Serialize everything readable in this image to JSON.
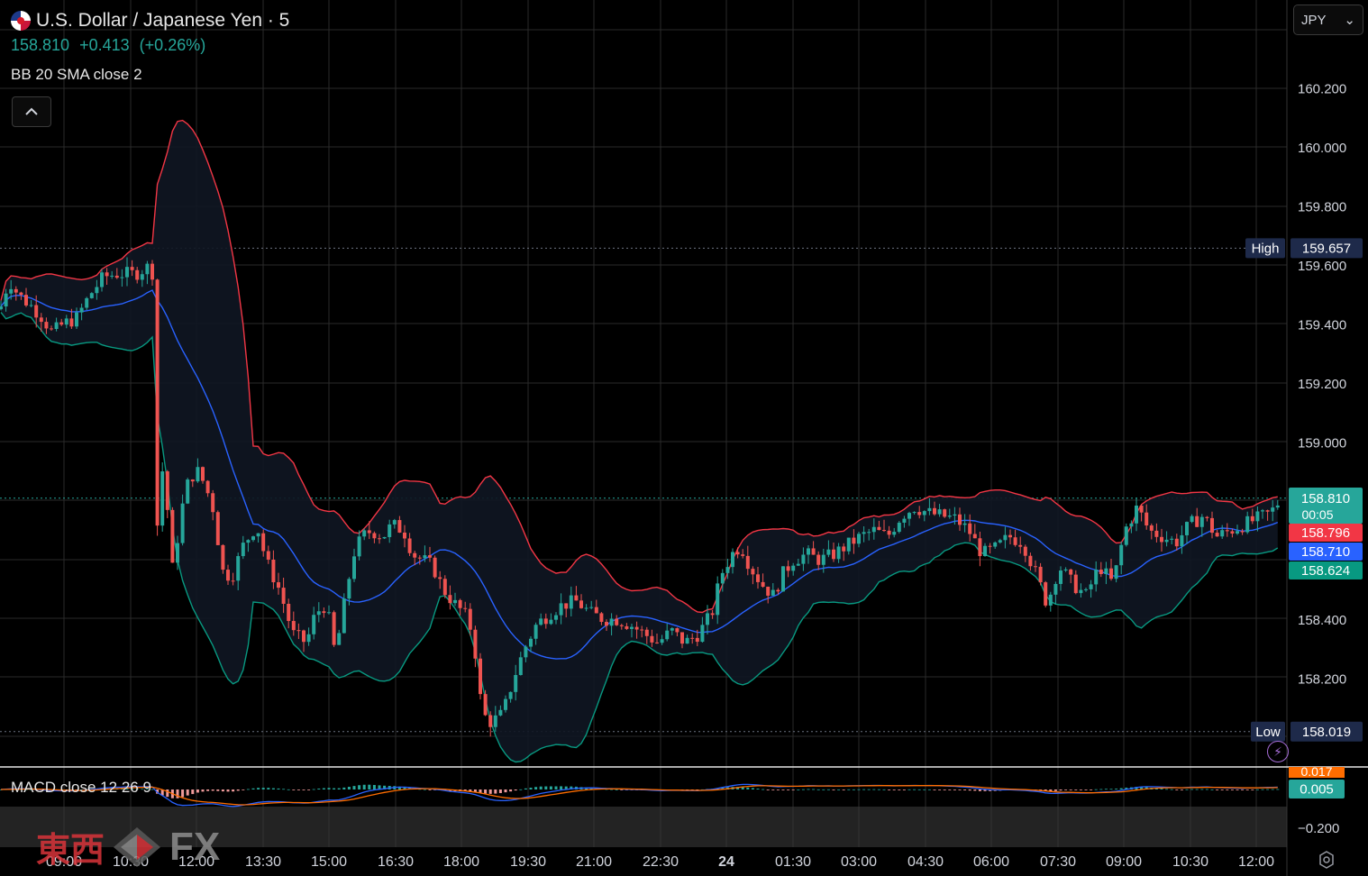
{
  "header": {
    "title": "U.S. Dollar / Japanese Yen · 5",
    "last_price": "158.810",
    "change": "+0.413",
    "change_pct": "(+0.26%)",
    "bb_label": "BB 20 SMA close 2"
  },
  "currency_selector": {
    "value": "JPY"
  },
  "macd": {
    "label": "MACD close 12 26 9"
  },
  "watermark": {
    "cn": "東西",
    "fx": "FX"
  },
  "colors": {
    "up": "#26a69a",
    "down": "#ef5350",
    "bb_upper": "#f23645",
    "bb_basis": "#2962ff",
    "bb_lower": "#089981",
    "macd": "#2962ff",
    "signal": "#ff6d00",
    "grid": "#2a2a2a"
  },
  "chart_data": [
    {
      "type": "candlestick",
      "symbol": "USDJPY",
      "interval": "5",
      "ylim": [
        157.9,
        160.3
      ],
      "y_ticks": [
        158.2,
        158.4,
        159.0,
        159.2,
        159.4,
        159.6,
        159.8,
        160.0,
        160.2
      ],
      "x_labels": [
        "09:00",
        "10:30",
        "12:00",
        "13:30",
        "15:00",
        "16:30",
        "18:00",
        "19:30",
        "21:00",
        "22:30",
        "24",
        "01:30",
        "03:00",
        "04:30",
        "06:00",
        "07:30",
        "09:00",
        "10:30",
        "12:00"
      ],
      "high": {
        "label": "High",
        "value": 159.657
      },
      "low": {
        "label": "Low",
        "value": 158.019
      },
      "last": {
        "value": "158.810",
        "countdown": "00:05"
      },
      "bb_upper": "158.796",
      "bb_basis": "158.710",
      "bb_lower": "158.624",
      "close_path": [
        [
          0,
          159.45
        ],
        [
          10,
          159.55
        ],
        [
          20,
          159.5
        ],
        [
          35,
          159.46
        ],
        [
          45,
          159.43
        ],
        [
          58,
          159.37
        ],
        [
          70,
          159.4
        ],
        [
          85,
          159.42
        ],
        [
          100,
          159.5
        ],
        [
          115,
          159.56
        ],
        [
          130,
          159.57
        ],
        [
          150,
          159.57
        ],
        [
          168,
          159.6
        ],
        [
          172,
          159.5
        ],
        [
          175,
          158.6
        ],
        [
          178,
          158.95
        ],
        [
          185,
          158.8
        ],
        [
          192,
          158.55
        ],
        [
          200,
          158.75
        ],
        [
          210,
          158.88
        ],
        [
          220,
          158.9
        ],
        [
          228,
          158.85
        ],
        [
          236,
          158.78
        ],
        [
          248,
          158.55
        ],
        [
          258,
          158.55
        ],
        [
          270,
          158.65
        ],
        [
          285,
          158.72
        ],
        [
          295,
          158.6
        ],
        [
          310,
          158.5
        ],
        [
          325,
          158.35
        ],
        [
          340,
          158.32
        ],
        [
          350,
          158.42
        ],
        [
          362,
          158.45
        ],
        [
          372,
          158.28
        ],
        [
          382,
          158.45
        ],
        [
          392,
          158.62
        ],
        [
          402,
          158.68
        ],
        [
          412,
          158.7
        ],
        [
          425,
          158.68
        ],
        [
          435,
          158.72
        ],
        [
          448,
          158.7
        ],
        [
          458,
          158.62
        ],
        [
          470,
          158.6
        ],
        [
          480,
          158.58
        ],
        [
          492,
          158.5
        ],
        [
          505,
          158.45
        ],
        [
          515,
          158.42
        ],
        [
          525,
          158.35
        ],
        [
          535,
          158.08
        ],
        [
          545,
          158.05
        ],
        [
          558,
          158.08
        ],
        [
          570,
          158.2
        ],
        [
          582,
          158.3
        ],
        [
          595,
          158.38
        ],
        [
          610,
          158.42
        ],
        [
          625,
          158.45
        ],
        [
          640,
          158.46
        ],
        [
          655,
          158.42
        ],
        [
          670,
          158.4
        ],
        [
          685,
          158.4
        ],
        [
          700,
          158.38
        ],
        [
          715,
          158.35
        ],
        [
          730,
          158.32
        ],
        [
          745,
          158.36
        ],
        [
          760,
          158.32
        ],
        [
          775,
          158.35
        ],
        [
          790,
          158.42
        ],
        [
          800,
          158.55
        ],
        [
          812,
          158.62
        ],
        [
          822,
          158.65
        ],
        [
          832,
          158.58
        ],
        [
          845,
          158.52
        ],
        [
          858,
          158.48
        ],
        [
          868,
          158.55
        ],
        [
          880,
          158.6
        ],
        [
          895,
          158.62
        ],
        [
          910,
          158.6
        ],
        [
          925,
          158.62
        ],
        [
          940,
          158.65
        ],
        [
          955,
          158.68
        ],
        [
          970,
          158.7
        ],
        [
          985,
          158.68
        ],
        [
          1000,
          158.75
        ],
        [
          1015,
          158.78
        ],
        [
          1030,
          158.76
        ],
        [
          1045,
          158.75
        ],
        [
          1060,
          158.74
        ],
        [
          1075,
          158.7
        ],
        [
          1090,
          158.62
        ],
        [
          1105,
          158.64
        ],
        [
          1120,
          158.68
        ],
        [
          1135,
          158.66
        ],
        [
          1150,
          158.55
        ],
        [
          1162,
          158.45
        ],
        [
          1175,
          158.58
        ],
        [
          1190,
          158.52
        ],
        [
          1205,
          158.48
        ],
        [
          1220,
          158.58
        ],
        [
          1235,
          158.52
        ],
        [
          1248,
          158.7
        ],
        [
          1262,
          158.78
        ],
        [
          1275,
          158.7
        ],
        [
          1290,
          158.68
        ],
        [
          1305,
          158.66
        ],
        [
          1320,
          158.72
        ],
        [
          1335,
          158.75
        ],
        [
          1350,
          158.68
        ],
        [
          1365,
          158.7
        ],
        [
          1380,
          158.72
        ],
        [
          1395,
          158.74
        ],
        [
          1410,
          158.76
        ],
        [
          1422,
          158.81
        ]
      ]
    },
    {
      "type": "line",
      "name": "MACD",
      "y_ticks": [
        -0.2
      ],
      "macd_value": "0.017",
      "signal_value": "0.005"
    }
  ]
}
